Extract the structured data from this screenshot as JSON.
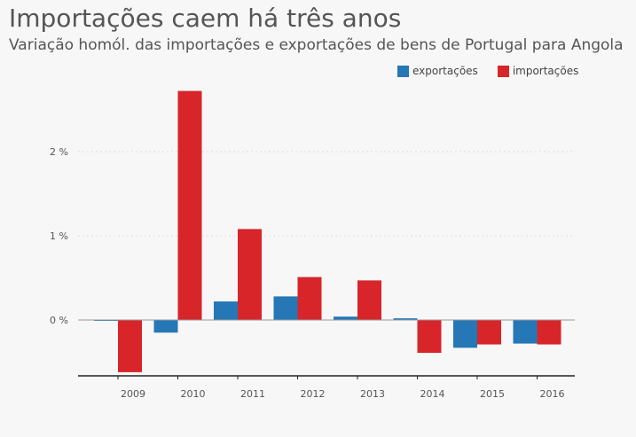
{
  "title": "Importações caem há três anos",
  "subtitle": "Variação homól. das importações e exportações de bens de Portugal para Angola",
  "colors": {
    "exportacoes": "#2577b5",
    "importacoes": "#d7252a",
    "background": "#f7f7f7",
    "grid": "#dddddd",
    "axis": "#222222"
  },
  "legend": {
    "position": "top-right",
    "items": [
      {
        "label": "exportações",
        "series": "exportacoes"
      },
      {
        "label": "importações",
        "series": "importacoes"
      }
    ]
  },
  "chart_data": {
    "type": "bar",
    "title": "Importações caem há três anos",
    "subtitle": "Variação homól. das importações e exportações de bens de Portugal para Angola",
    "xlabel": "",
    "ylabel": "",
    "categories": [
      "2009",
      "2010",
      "2011",
      "2012",
      "2013",
      "2014",
      "2015",
      "2016"
    ],
    "series": [
      {
        "name": "exportações",
        "key": "exportacoes",
        "values": [
          -0.01,
          -0.15,
          0.22,
          0.28,
          0.04,
          0.02,
          -0.33,
          -0.28
        ]
      },
      {
        "name": "importações",
        "key": "importacoes",
        "values": [
          -0.62,
          2.72,
          1.08,
          0.51,
          0.47,
          -0.39,
          -0.29,
          -0.29
        ]
      }
    ],
    "yticks": [
      {
        "value": 0,
        "label": "0 %"
      },
      {
        "value": 1,
        "label": "1 %"
      },
      {
        "value": 2,
        "label": "2 %"
      }
    ],
    "ylim": [
      -0.66,
      2.85
    ],
    "grid": true,
    "legend": "top-right"
  }
}
